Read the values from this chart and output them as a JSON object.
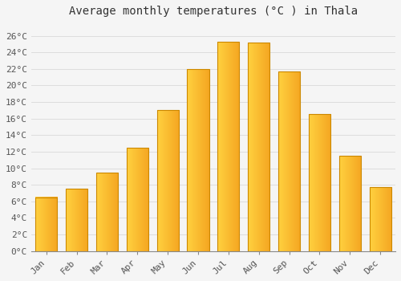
{
  "title": "Average monthly temperatures (°C ) in Thala",
  "months": [
    "Jan",
    "Feb",
    "Mar",
    "Apr",
    "May",
    "Jun",
    "Jul",
    "Aug",
    "Sep",
    "Oct",
    "Nov",
    "Dec"
  ],
  "values": [
    6.5,
    7.5,
    9.5,
    12.5,
    17.0,
    22.0,
    25.3,
    25.2,
    21.7,
    16.5,
    11.5,
    7.7
  ],
  "bar_color_left": "#FFCC44",
  "bar_color_right": "#F5A623",
  "bar_edge_color": "#CC8800",
  "background_color": "#f5f5f5",
  "plot_bg_color": "#f5f5f5",
  "grid_color": "#dddddd",
  "ytick_labels": [
    "0°C",
    "2°C",
    "4°C",
    "6°C",
    "8°C",
    "10°C",
    "12°C",
    "14°C",
    "16°C",
    "18°C",
    "20°C",
    "22°C",
    "24°C",
    "26°C"
  ],
  "ytick_values": [
    0,
    2,
    4,
    6,
    8,
    10,
    12,
    14,
    16,
    18,
    20,
    22,
    24,
    26
  ],
  "ylim": [
    0,
    27.5
  ],
  "title_fontsize": 10,
  "tick_fontsize": 8,
  "font_family": "monospace"
}
